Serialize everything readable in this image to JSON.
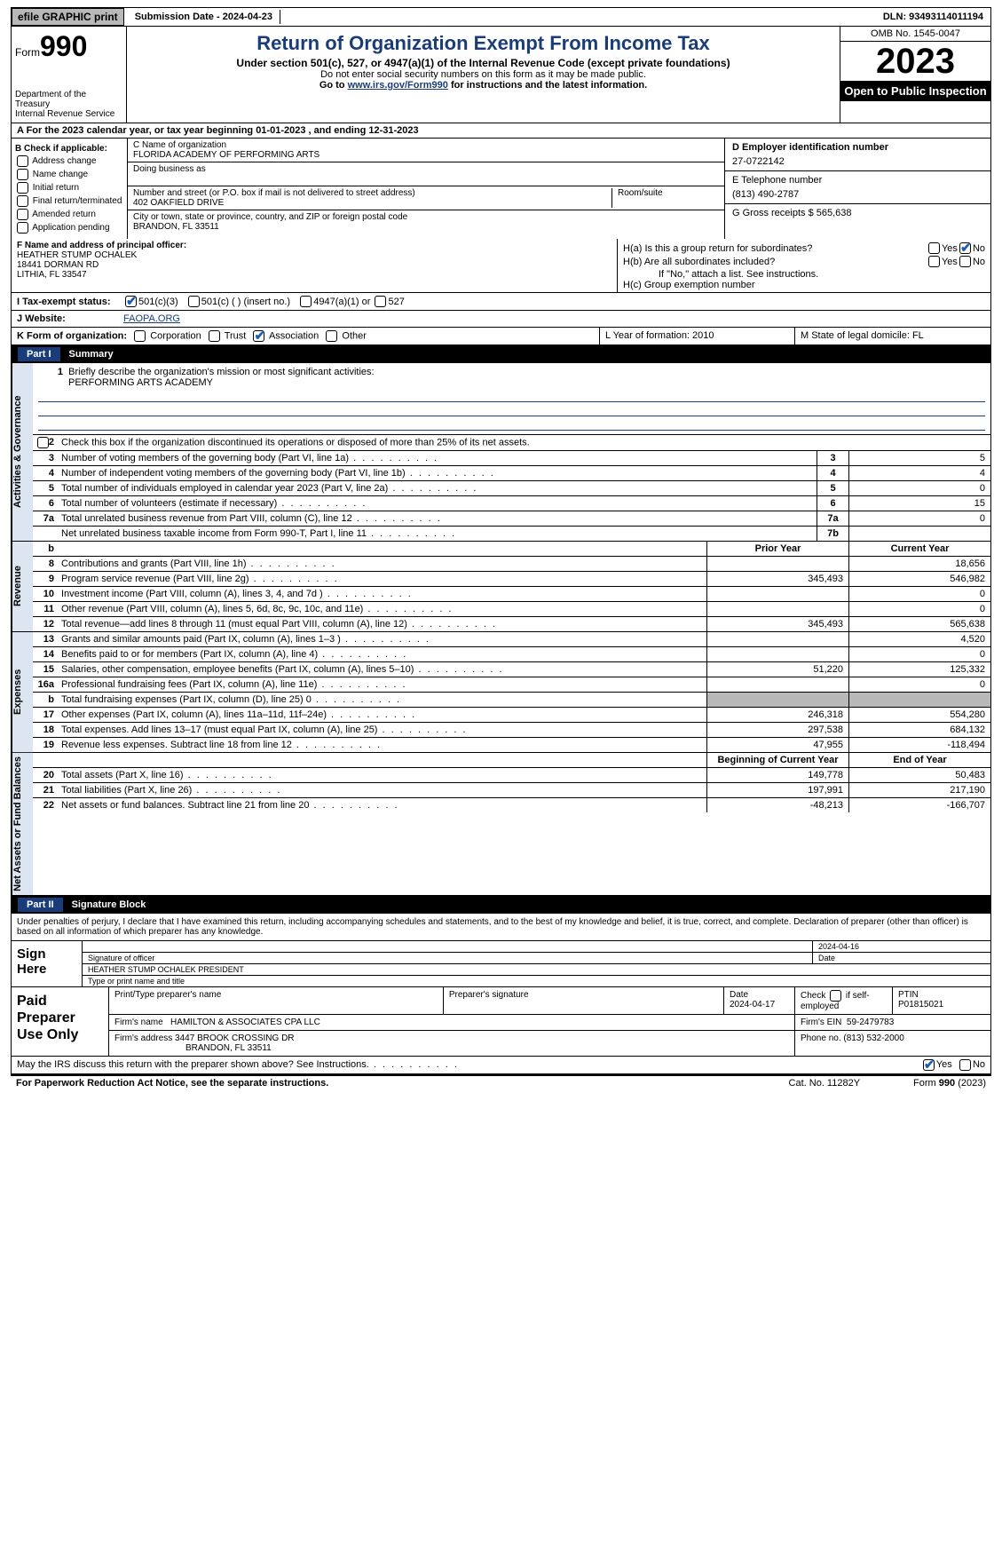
{
  "topbar": {
    "efile": "efile GRAPHIC print",
    "submission": "Submission Date - 2024-04-23",
    "dln": "DLN: 93493114011194"
  },
  "header": {
    "form_label": "Form",
    "form_num": "990",
    "dept": "Department of the Treasury",
    "irs": "Internal Revenue Service",
    "title": "Return of Organization Exempt From Income Tax",
    "sub": "Under section 501(c), 527, or 4947(a)(1) of the Internal Revenue Code (except private foundations)",
    "ssn_note": "Do not enter social security numbers on this form as it may be made public.",
    "goto_pre": "Go to ",
    "goto_link": "www.irs.gov/Form990",
    "goto_post": " for instructions and the latest information.",
    "omb": "OMB No. 1545-0047",
    "year": "2023",
    "open": "Open to Public Inspection"
  },
  "rowA": "A   For the 2023 calendar year, or tax year beginning 01-01-2023    , and ending 12-31-2023",
  "boxB": {
    "header": "B Check if applicable:",
    "items": [
      "Address change",
      "Name change",
      "Initial return",
      "Final return/terminated",
      "Amended return",
      "Application pending"
    ]
  },
  "boxC": {
    "name_lbl": "C Name of organization",
    "name": "FLORIDA ACADEMY OF PERFORMING ARTS",
    "dba_lbl": "Doing business as",
    "addr_lbl": "Number and street (or P.O. box if mail is not delivered to street address)",
    "addr": "402 OAKFIELD DRIVE",
    "room_lbl": "Room/suite",
    "city_lbl": "City or town, state or province, country, and ZIP or foreign postal code",
    "city": "BRANDON, FL  33511"
  },
  "boxD": {
    "lbl": "D Employer identification number",
    "val": "27-0722142"
  },
  "boxE": {
    "lbl": "E Telephone number",
    "val": "(813) 490-2787"
  },
  "boxG": {
    "lbl": "G Gross receipts $ 565,638"
  },
  "officer": {
    "lbl": "F  Name and address of principal officer:",
    "name": "HEATHER STUMP OCHALEK",
    "addr1": "18441 DORMAN RD",
    "addr2": "LITHIA, FL  33547"
  },
  "boxH": {
    "a": "H(a)  Is this a group return for subordinates?",
    "b": "H(b)  Are all subordinates included?",
    "note": "If \"No,\" attach a list. See instructions.",
    "c": "H(c)  Group exemption number"
  },
  "tax_status_lbl": "I   Tax-exempt status:",
  "tax_opts": {
    "a": "501(c)(3)",
    "b": "501(c) (  ) (insert no.)",
    "c": "4947(a)(1) or",
    "d": "527"
  },
  "website_lbl": "J   Website:",
  "website": "FAOPA.ORG",
  "rowK": {
    "lbl": "K Form of organization:",
    "opts": [
      "Corporation",
      "Trust",
      "Association",
      "Other"
    ],
    "L": "L Year of formation: 2010",
    "M": "M State of legal domicile: FL"
  },
  "part1_hdr": {
    "num": "Part I",
    "title": "Summary"
  },
  "governance": {
    "vlabel": "Activities & Governance",
    "l1": "Briefly describe the organization's mission or most significant activities:",
    "mission": "PERFORMING ARTS ACADEMY",
    "l2": "Check this box         if the organization discontinued its operations or disposed of more than 25% of its net assets.",
    "rows": [
      {
        "n": "3",
        "d": "Number of voting members of the governing body (Part VI, line 1a)",
        "box": "3",
        "v": "5"
      },
      {
        "n": "4",
        "d": "Number of independent voting members of the governing body (Part VI, line 1b)",
        "box": "4",
        "v": "4"
      },
      {
        "n": "5",
        "d": "Total number of individuals employed in calendar year 2023 (Part V, line 2a)",
        "box": "5",
        "v": "0"
      },
      {
        "n": "6",
        "d": "Total number of volunteers (estimate if necessary)",
        "box": "6",
        "v": "15"
      },
      {
        "n": "7a",
        "d": "Total unrelated business revenue from Part VIII, column (C), line 12",
        "box": "7a",
        "v": "0"
      },
      {
        "n": "",
        "d": "Net unrelated business taxable income from Form 990-T, Part I, line 11",
        "box": "7b",
        "v": ""
      }
    ]
  },
  "revenue": {
    "vlabel": "Revenue",
    "hdr_prior": "Prior Year",
    "hdr_curr": "Current Year",
    "rows": [
      {
        "n": "8",
        "d": "Contributions and grants (Part VIII, line 1h)",
        "p": "",
        "c": "18,656"
      },
      {
        "n": "9",
        "d": "Program service revenue (Part VIII, line 2g)",
        "p": "345,493",
        "c": "546,982"
      },
      {
        "n": "10",
        "d": "Investment income (Part VIII, column (A), lines 3, 4, and 7d )",
        "p": "",
        "c": "0"
      },
      {
        "n": "11",
        "d": "Other revenue (Part VIII, column (A), lines 5, 6d, 8c, 9c, 10c, and 11e)",
        "p": "",
        "c": "0"
      },
      {
        "n": "12",
        "d": "Total revenue—add lines 8 through 11 (must equal Part VIII, column (A), line 12)",
        "p": "345,493",
        "c": "565,638"
      }
    ]
  },
  "expenses": {
    "vlabel": "Expenses",
    "rows": [
      {
        "n": "13",
        "d": "Grants and similar amounts paid (Part IX, column (A), lines 1–3 )",
        "p": "",
        "c": "4,520"
      },
      {
        "n": "14",
        "d": "Benefits paid to or for members (Part IX, column (A), line 4)",
        "p": "",
        "c": "0"
      },
      {
        "n": "15",
        "d": "Salaries, other compensation, employee benefits (Part IX, column (A), lines 5–10)",
        "p": "51,220",
        "c": "125,332"
      },
      {
        "n": "16a",
        "d": "Professional fundraising fees (Part IX, column (A), line 11e)",
        "p": "",
        "c": "0"
      },
      {
        "n": "b",
        "d": "Total fundraising expenses (Part IX, column (D), line 25) 0",
        "p": "grey",
        "c": "grey"
      },
      {
        "n": "17",
        "d": "Other expenses (Part IX, column (A), lines 11a–11d, 11f–24e)",
        "p": "246,318",
        "c": "554,280"
      },
      {
        "n": "18",
        "d": "Total expenses. Add lines 13–17 (must equal Part IX, column (A), line 25)",
        "p": "297,538",
        "c": "684,132"
      },
      {
        "n": "19",
        "d": "Revenue less expenses. Subtract line 18 from line 12",
        "p": "47,955",
        "c": "-118,494"
      }
    ]
  },
  "netassets": {
    "vlabel": "Net Assets or Fund Balances",
    "hdr_beg": "Beginning of Current Year",
    "hdr_end": "End of Year",
    "rows": [
      {
        "n": "20",
        "d": "Total assets (Part X, line 16)",
        "p": "149,778",
        "c": "50,483"
      },
      {
        "n": "21",
        "d": "Total liabilities (Part X, line 26)",
        "p": "197,991",
        "c": "217,190"
      },
      {
        "n": "22",
        "d": "Net assets or fund balances. Subtract line 21 from line 20",
        "p": "-48,213",
        "c": "-166,707"
      }
    ]
  },
  "part2_hdr": {
    "num": "Part II",
    "title": "Signature Block"
  },
  "perjury": "Under penalties of perjury, I declare that I have examined this return, including accompanying schedules and statements, and to the best of my knowledge and belief, it is true, correct, and complete. Declaration of preparer (other than officer) is based on all information of which preparer has any knowledge.",
  "sign": {
    "lbl": "Sign Here",
    "date": "2024-04-16",
    "sig_lbl": "Signature of officer",
    "date_lbl": "Date",
    "name": "HEATHER STUMP OCHALEK PRESIDENT",
    "type_lbl": "Type or print name and title"
  },
  "prep": {
    "lbl": "Paid Preparer Use Only",
    "h1": "Print/Type preparer's name",
    "h2": "Preparer's signature",
    "h3": "Date",
    "date": "2024-04-17",
    "h4_pre": "Check",
    "h4_post": "if self-employed",
    "h5": "PTIN",
    "ptin": "P01815021",
    "firm_lbl": "Firm's name",
    "firm": "HAMILTON & ASSOCIATES CPA LLC",
    "ein_lbl": "Firm's EIN",
    "ein": "59-2479783",
    "addr_lbl": "Firm's address",
    "addr1": "3447 BROOK CROSSING DR",
    "addr2": "BRANDON, FL  33511",
    "phone_lbl": "Phone no.",
    "phone": "(813) 532-2000"
  },
  "discuss": "May the IRS discuss this return with the preparer shown above? See Instructions.",
  "yes": "Yes",
  "no": "No",
  "footer": {
    "left": "For Paperwork Reduction Act Notice, see the separate instructions.",
    "mid": "Cat. No. 11282Y",
    "right_pre": "Form ",
    "right_form": "990",
    "right_post": " (2023)"
  }
}
